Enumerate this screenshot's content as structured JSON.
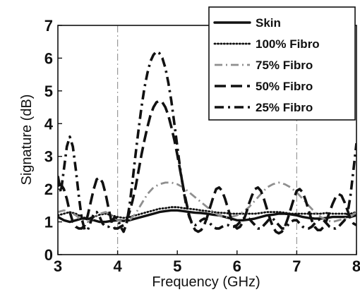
{
  "chart_data": {
    "type": "line",
    "title": "",
    "xlabel": "Frequency (GHz)",
    "ylabel": "Signature (dB)",
    "xlim": [
      3,
      8
    ],
    "ylim": [
      0,
      7
    ],
    "xticks": [
      3,
      4,
      5,
      6,
      7,
      8
    ],
    "yticks": [
      0,
      1,
      2,
      3,
      4,
      5,
      6,
      7
    ],
    "xtick_labels": [
      "3",
      "4",
      "5",
      "6",
      "7",
      "8"
    ],
    "ytick_labels": [
      "0",
      "1",
      "2",
      "3",
      "4",
      "5",
      "6",
      "7"
    ],
    "grid": false,
    "legend_position": "top-right",
    "markers": [
      4,
      7
    ],
    "series": [
      {
        "name": "Skin",
        "style": "solid",
        "color": "#111111",
        "x": [
          3.0,
          3.1,
          3.2,
          3.3,
          3.4,
          3.5,
          3.6,
          3.7,
          3.8,
          3.9,
          4.0,
          4.1,
          4.2,
          4.3,
          4.4,
          4.5,
          4.6,
          4.7,
          4.8,
          4.9,
          5.0,
          5.1,
          5.2,
          5.3,
          5.4,
          5.5,
          5.6,
          5.7,
          5.8,
          5.9,
          6.0,
          6.1,
          6.2,
          6.3,
          6.4,
          6.5,
          6.6,
          6.7,
          6.8,
          6.9,
          7.0,
          7.1,
          7.2,
          7.3,
          7.4,
          7.5,
          7.6,
          7.7,
          7.8,
          7.9,
          8.0
        ],
        "y": [
          1.15,
          1.05,
          1.0,
          1.05,
          1.1,
          1.1,
          1.05,
          1.0,
          1.0,
          1.03,
          1.05,
          1.03,
          1.05,
          1.1,
          1.15,
          1.2,
          1.25,
          1.3,
          1.33,
          1.35,
          1.35,
          1.33,
          1.3,
          1.28,
          1.27,
          1.25,
          1.22,
          1.2,
          1.15,
          1.1,
          1.05,
          1.05,
          1.07,
          1.1,
          1.15,
          1.2,
          1.22,
          1.25,
          1.25,
          1.23,
          1.2,
          1.15,
          1.12,
          1.1,
          1.1,
          1.12,
          1.15,
          1.15,
          1.15,
          1.15,
          1.2
        ]
      },
      {
        "name": "100% Fibro",
        "style": "dotted",
        "color": "#111111",
        "x": [
          3.0,
          3.1,
          3.2,
          3.3,
          3.4,
          3.5,
          3.6,
          3.7,
          3.8,
          3.9,
          4.0,
          4.1,
          4.2,
          4.3,
          4.4,
          4.5,
          4.6,
          4.7,
          4.8,
          4.9,
          5.0,
          5.1,
          5.2,
          5.3,
          5.4,
          5.5,
          5.6,
          5.7,
          5.8,
          5.9,
          6.0,
          6.1,
          6.2,
          6.3,
          6.4,
          6.5,
          6.6,
          6.7,
          6.8,
          6.9,
          7.0,
          7.1,
          7.2,
          7.3,
          7.4,
          7.5,
          7.6,
          7.7,
          7.8,
          7.9,
          8.0
        ],
        "y": [
          1.2,
          1.25,
          1.3,
          1.25,
          1.15,
          1.1,
          1.15,
          1.22,
          1.25,
          1.2,
          1.15,
          1.12,
          1.15,
          1.2,
          1.25,
          1.3,
          1.35,
          1.4,
          1.42,
          1.45,
          1.45,
          1.42,
          1.4,
          1.38,
          1.35,
          1.33,
          1.3,
          1.28,
          1.27,
          1.25,
          1.25,
          1.25,
          1.25,
          1.25,
          1.27,
          1.3,
          1.3,
          1.3,
          1.28,
          1.25,
          1.25,
          1.25,
          1.25,
          1.25,
          1.25,
          1.27,
          1.25,
          1.25,
          1.25,
          1.25,
          1.3
        ]
      },
      {
        "name": "75% Fibro",
        "style": "dash-dot-light",
        "color": "#8f8f8f",
        "x": [
          3.0,
          3.1,
          3.2,
          3.3,
          3.4,
          3.5,
          3.6,
          3.7,
          3.8,
          3.9,
          4.0,
          4.1,
          4.2,
          4.3,
          4.4,
          4.5,
          4.6,
          4.7,
          4.8,
          4.9,
          5.0,
          5.1,
          5.2,
          5.3,
          5.4,
          5.5,
          5.6,
          5.7,
          5.8,
          5.9,
          6.0,
          6.1,
          6.2,
          6.3,
          6.4,
          6.5,
          6.6,
          6.7,
          6.8,
          6.9,
          7.0,
          7.1,
          7.2,
          7.3,
          7.4,
          7.5,
          7.6,
          7.7,
          7.8,
          7.9,
          8.0
        ],
        "y": [
          1.3,
          1.35,
          1.3,
          1.2,
          1.05,
          1.0,
          1.1,
          1.25,
          1.3,
          1.2,
          1.05,
          1.0,
          1.05,
          1.25,
          1.55,
          1.85,
          2.05,
          2.15,
          2.2,
          2.2,
          2.15,
          2.05,
          1.9,
          1.75,
          1.6,
          1.45,
          1.3,
          1.2,
          1.15,
          1.15,
          1.2,
          1.3,
          1.45,
          1.65,
          1.85,
          2.05,
          2.15,
          2.2,
          2.15,
          2.05,
          1.9,
          1.7,
          1.5,
          1.3,
          1.15,
          1.05,
          1.0,
          1.05,
          1.1,
          1.15,
          1.3
        ]
      },
      {
        "name": "50% Fibro",
        "style": "dashed",
        "color": "#111111",
        "x": [
          3.0,
          3.05,
          3.1,
          3.15,
          3.2,
          3.25,
          3.3,
          3.35,
          3.4,
          3.45,
          3.5,
          3.55,
          3.6,
          3.65,
          3.7,
          3.75,
          3.8,
          3.85,
          3.9,
          3.95,
          4.0,
          4.05,
          4.1,
          4.15,
          4.2,
          4.25,
          4.3,
          4.35,
          4.4,
          4.45,
          4.5,
          4.55,
          4.6,
          4.65,
          4.7,
          4.75,
          4.8,
          4.85,
          4.9,
          4.95,
          5.0,
          5.05,
          5.1,
          5.15,
          5.2,
          5.25,
          5.3,
          5.35,
          5.4,
          5.45,
          5.5,
          5.55,
          5.6,
          5.65,
          5.7,
          5.75,
          5.8,
          5.85,
          5.9,
          5.95,
          6.0,
          6.05,
          6.1,
          6.15,
          6.2,
          6.25,
          6.3,
          6.35,
          6.4,
          6.45,
          6.5,
          6.55,
          6.6,
          6.65,
          6.7,
          6.75,
          6.8,
          6.85,
          6.9,
          6.95,
          7.0,
          7.05,
          7.1,
          7.15,
          7.2,
          7.25,
          7.3,
          7.35,
          7.4,
          7.45,
          7.5,
          7.55,
          7.6,
          7.65,
          7.7,
          7.75,
          7.8,
          7.85,
          7.9,
          7.95,
          8.0
        ],
        "y": [
          2.1,
          2.15,
          2.0,
          1.7,
          1.3,
          1.0,
          0.85,
          0.8,
          0.8,
          0.9,
          1.2,
          1.6,
          2.0,
          2.3,
          2.35,
          2.2,
          1.85,
          1.4,
          1.0,
          0.8,
          0.8,
          0.85,
          0.9,
          1.05,
          1.3,
          1.65,
          2.05,
          2.55,
          3.05,
          3.5,
          3.9,
          4.25,
          4.5,
          4.65,
          4.7,
          4.65,
          4.5,
          4.25,
          3.9,
          3.5,
          3.05,
          2.55,
          2.05,
          1.6,
          1.2,
          0.9,
          0.75,
          0.7,
          0.75,
          0.9,
          1.15,
          1.45,
          1.75,
          2.0,
          2.05,
          1.95,
          1.7,
          1.4,
          1.1,
          0.9,
          0.8,
          0.85,
          1.0,
          1.25,
          1.55,
          1.8,
          2.0,
          2.05,
          1.95,
          1.7,
          1.4,
          1.1,
          0.85,
          0.7,
          0.65,
          0.7,
          0.85,
          1.1,
          1.4,
          1.7,
          1.95,
          2.0,
          1.9,
          1.65,
          1.35,
          1.05,
          0.85,
          0.75,
          0.75,
          0.85,
          1.05,
          1.3,
          1.55,
          1.75,
          1.85,
          1.8,
          1.6,
          1.35,
          1.1,
          0.95,
          0.9
        ]
      },
      {
        "name": "25% Fibro",
        "style": "dash-dot",
        "color": "#111111",
        "x": [
          3.0,
          3.05,
          3.1,
          3.15,
          3.2,
          3.25,
          3.3,
          3.35,
          3.4,
          3.45,
          3.5,
          3.55,
          3.6,
          3.65,
          3.7,
          3.75,
          3.8,
          3.85,
          3.9,
          3.95,
          4.0,
          4.05,
          4.1,
          4.15,
          4.2,
          4.25,
          4.3,
          4.35,
          4.4,
          4.45,
          4.5,
          4.55,
          4.6,
          4.65,
          4.7,
          4.75,
          4.8,
          4.85,
          4.9,
          4.95,
          5.0,
          5.05,
          5.1,
          5.15,
          5.2,
          5.25,
          5.3,
          5.35,
          5.4,
          5.45,
          5.5,
          5.55,
          5.6,
          5.65,
          5.7,
          5.75,
          5.8,
          5.85,
          5.9,
          5.95,
          6.0,
          6.05,
          6.1,
          6.15,
          6.2,
          6.25,
          6.3,
          6.35,
          6.4,
          6.45,
          6.5,
          6.55,
          6.6,
          6.65,
          6.7,
          6.75,
          6.8,
          6.85,
          6.9,
          6.95,
          7.0,
          7.05,
          7.1,
          7.15,
          7.2,
          7.25,
          7.3,
          7.35,
          7.4,
          7.45,
          7.5,
          7.55,
          7.6,
          7.65,
          7.7,
          7.75,
          7.8,
          7.85,
          7.9,
          7.95,
          8.0
        ],
        "y": [
          2.4,
          1.9,
          2.6,
          3.3,
          3.6,
          3.3,
          2.6,
          1.8,
          1.1,
          0.75,
          0.75,
          1.0,
          1.25,
          1.3,
          1.15,
          0.95,
          0.85,
          0.85,
          1.0,
          1.15,
          1.1,
          0.85,
          0.7,
          0.95,
          1.5,
          2.25,
          3.05,
          3.8,
          4.5,
          5.1,
          5.55,
          5.9,
          6.1,
          6.2,
          6.15,
          6.0,
          5.7,
          5.25,
          4.7,
          4.0,
          3.3,
          2.6,
          2.0,
          1.5,
          1.15,
          0.95,
          0.9,
          0.95,
          1.05,
          1.1,
          1.05,
          0.95,
          0.85,
          0.8,
          0.8,
          0.85,
          0.9,
          0.9,
          0.85,
          0.85,
          0.9,
          1.0,
          1.1,
          1.15,
          1.1,
          1.0,
          0.9,
          0.8,
          0.8,
          0.9,
          1.0,
          1.1,
          1.1,
          1.0,
          0.9,
          0.8,
          0.8,
          0.9,
          1.0,
          1.05,
          1.05,
          0.95,
          0.85,
          0.8,
          0.8,
          0.85,
          0.95,
          1.05,
          1.1,
          1.05,
          0.95,
          0.85,
          0.8,
          0.8,
          0.85,
          0.95,
          1.05,
          1.25,
          1.8,
          2.6,
          3.4
        ]
      }
    ]
  }
}
